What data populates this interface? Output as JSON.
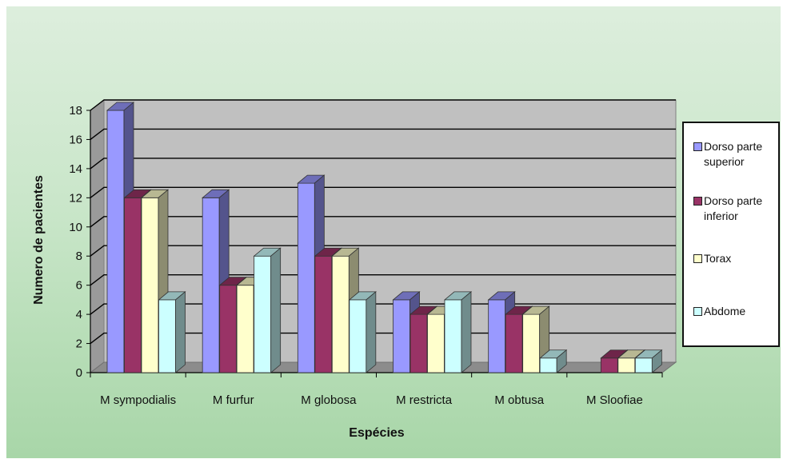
{
  "chart_data": {
    "type": "bar",
    "title": "",
    "xlabel": "Espécies",
    "ylabel": "Numero de pacientes",
    "ylim": [
      0,
      18
    ],
    "ytick_step": 2,
    "grid": true,
    "legend_position": "right",
    "categories": [
      "M sympodialis",
      "M furfur",
      "M globosa",
      "M restricta",
      "M obtusa",
      "M Sloofiae"
    ],
    "series": [
      {
        "name": "Dorso parte superior",
        "color": "#9999ff",
        "values": [
          18,
          12,
          13,
          5,
          5,
          0
        ]
      },
      {
        "name": "Dorso parte inferior",
        "color": "#993366",
        "values": [
          12,
          6,
          8,
          4,
          4,
          1
        ]
      },
      {
        "name": "Torax",
        "color": "#ffffcc",
        "values": [
          12,
          6,
          8,
          4,
          4,
          1
        ]
      },
      {
        "name": "Abdome",
        "color": "#ccffff",
        "values": [
          5,
          8,
          5,
          5,
          1,
          1
        ]
      }
    ]
  }
}
